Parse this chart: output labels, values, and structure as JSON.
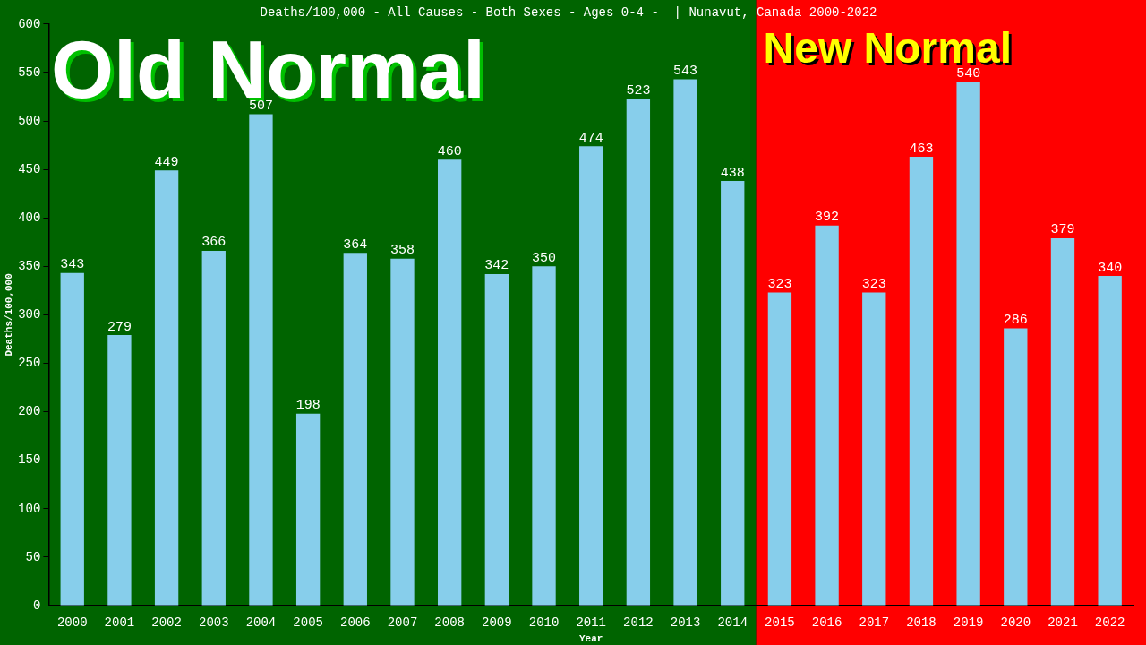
{
  "chart_data": {
    "type": "bar",
    "title": "Deaths/100,000 - All Causes - Both Sexes - Ages 0-4 -  | Nunavut, Canada 2000-2022",
    "xlabel": "Year",
    "ylabel": "Deaths/100,000",
    "categories": [
      "2000",
      "2001",
      "2002",
      "2003",
      "2004",
      "2005",
      "2006",
      "2007",
      "2008",
      "2009",
      "2010",
      "2011",
      "2012",
      "2013",
      "2014",
      "2015",
      "2016",
      "2017",
      "2018",
      "2019",
      "2020",
      "2021",
      "2022"
    ],
    "values": [
      343,
      279,
      449,
      366,
      507,
      198,
      364,
      358,
      460,
      342,
      350,
      474,
      523,
      543,
      438,
      323,
      392,
      323,
      463,
      540,
      286,
      379,
      340
    ],
    "color": "#87ceeb",
    "data_labels": true,
    "grid": false,
    "legend": false,
    "ylim": [
      0,
      600
    ],
    "yticks": [
      0,
      50,
      100,
      150,
      200,
      250,
      300,
      350,
      400,
      450,
      500,
      550,
      600
    ],
    "bands": [
      {
        "axis": "x",
        "from": "2000",
        "to": "2014",
        "label": "Old Normal",
        "color": "#006400"
      },
      {
        "axis": "x",
        "from": "2015",
        "to": "2022",
        "label": "New Normal",
        "color": "#ff0000"
      }
    ]
  }
}
